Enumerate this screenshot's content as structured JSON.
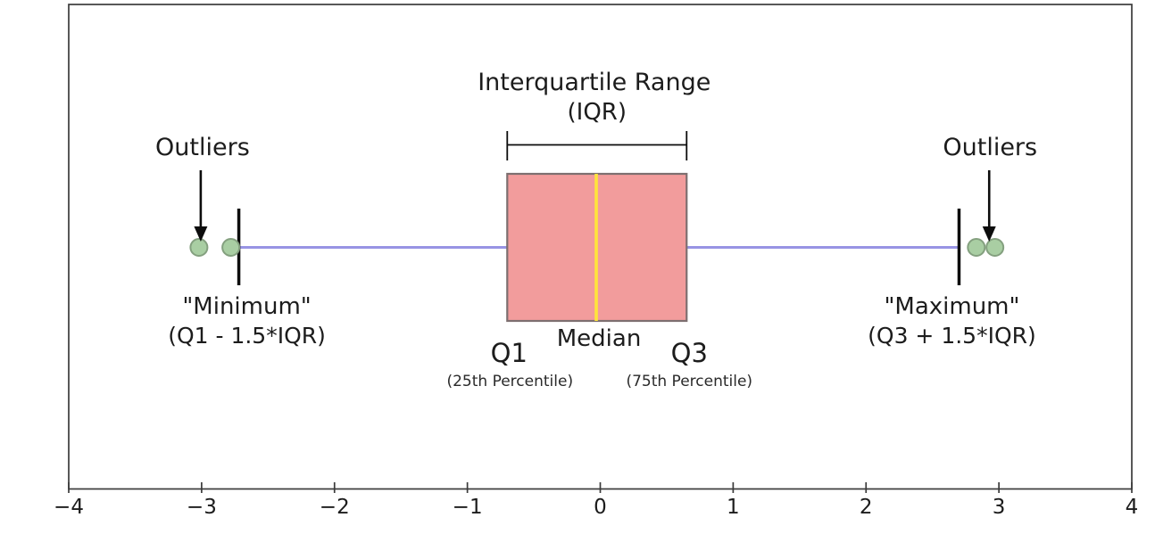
{
  "chart_data": {
    "type": "boxplot",
    "orientation": "horizontal",
    "title": "Interquartile Range",
    "subtitle": "(IQR)",
    "xlim": [
      -4,
      4
    ],
    "grid": false,
    "legend": "none",
    "stats": {
      "q1": -0.7,
      "median": -0.03,
      "q3": 0.65,
      "iqr": 1.35,
      "whisker_low": -2.72,
      "whisker_high": 2.7,
      "outliers_low": [
        -3.02,
        -2.78
      ],
      "outliers_high": [
        2.83,
        2.97
      ]
    },
    "x_ticks": [
      {
        "value": -4,
        "label": "−4"
      },
      {
        "value": -3,
        "label": "−3"
      },
      {
        "value": -2,
        "label": "−2"
      },
      {
        "value": -1,
        "label": "−1"
      },
      {
        "value": 0,
        "label": "0"
      },
      {
        "value": 1,
        "label": "1"
      },
      {
        "value": 2,
        "label": "2"
      },
      {
        "value": 3,
        "label": "3"
      },
      {
        "value": 4,
        "label": "4"
      }
    ],
    "annotations": {
      "outliers_left": "Outliers",
      "outliers_right": "Outliers",
      "minimum_line1": "\"Minimum\"",
      "minimum_line2": "(Q1 - 1.5*IQR)",
      "maximum_line1": "\"Maximum\"",
      "maximum_line2": "(Q3 + 1.5*IQR)",
      "q1_label": "Q1",
      "q1_sub": "(25th Percentile)",
      "median_label": "Median",
      "q3_label": "Q3",
      "q3_sub": "(75th Percentile)"
    },
    "colors": {
      "box_fill": "#F29C9C",
      "box_edge": "#7D6F70",
      "median_line": "#FFE43B",
      "whisker": "#9894E4",
      "cap": "#0D0D0D",
      "outlier_fill": "#A9CEA3",
      "outlier_edge": "#84A07F",
      "axis_frame": "#3B3B3B",
      "arrow": "#0D0D0D",
      "background": "#FFFFFF",
      "text": "#1C1C1C"
    }
  }
}
